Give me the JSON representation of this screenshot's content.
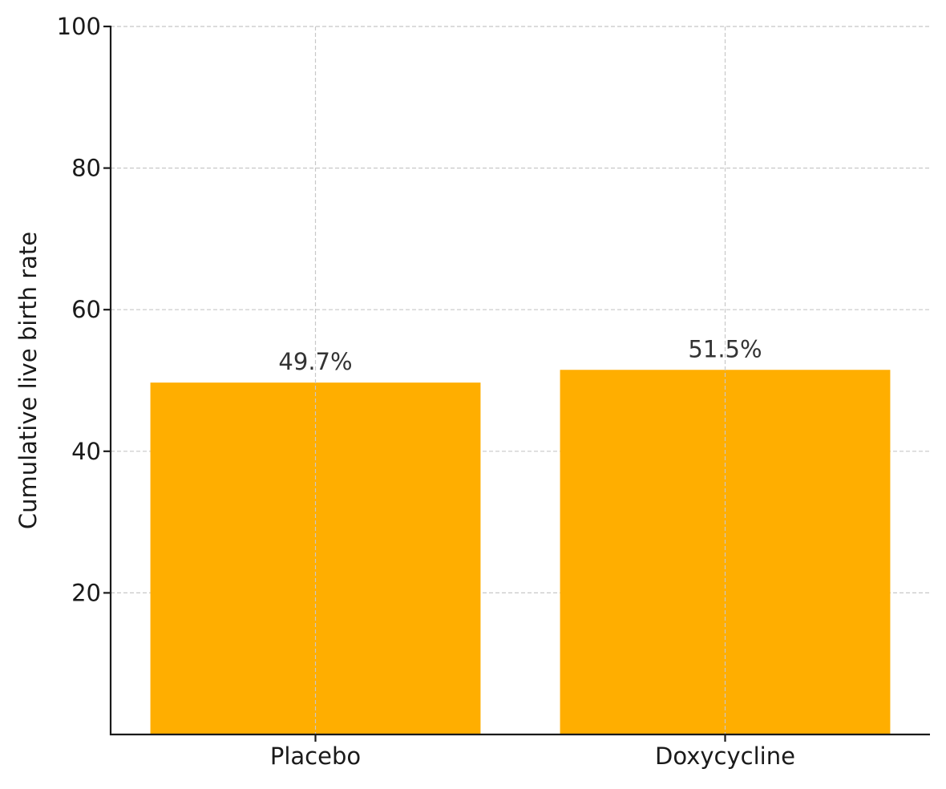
{
  "chart_data": {
    "type": "bar",
    "categories": [
      "Placebo",
      "Doxycycline"
    ],
    "values": [
      49.7,
      51.5
    ],
    "data_labels": [
      "49.7%",
      "51.5%"
    ],
    "title": "",
    "xlabel": "",
    "ylabel": "Cumulative live birth rate",
    "ylim": [
      0,
      100
    ],
    "yticks": [
      20,
      40,
      60,
      80,
      100
    ],
    "grid": true,
    "legend": "none",
    "colors": {
      "bar": "#FFAE00"
    }
  }
}
